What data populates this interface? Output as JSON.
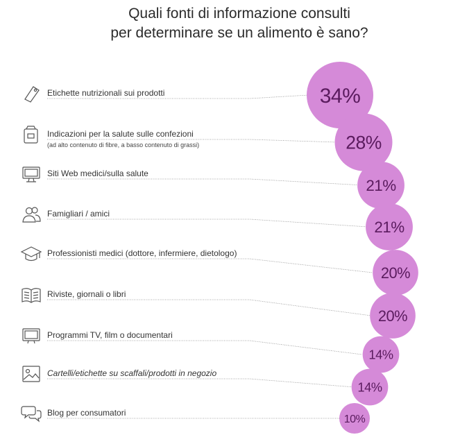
{
  "title_line1": "Quali fonti di informazione consulti",
  "title_line2": "per determinare se un alimento è sano?",
  "colors": {
    "bubble": "#d58ad8",
    "bubble_text": "#5a1b5e",
    "leader": "#8a8a8a"
  },
  "chart_data": {
    "type": "bubble",
    "unit": "%",
    "categories": [
      "Etichette nutrizionali sui prodotti",
      "Indicazioni per la salute sulle confezioni",
      "Siti Web medici/sulla salute",
      "Famigliari / amici",
      "Professionisti medici (dottore, infermiere, dietologo)",
      "Riviste, giornali o libri",
      "Programmi TV, film o documentari",
      "Cartelli/etichette su scaffali/prodotti in negozio",
      "Blog per consumatori"
    ],
    "values": [
      34,
      28,
      21,
      21,
      20,
      20,
      14,
      14,
      10
    ],
    "value_labels": [
      "34%",
      "28%",
      "21%",
      "21%",
      "20%",
      "20%",
      "14%",
      "14%",
      "10%"
    ],
    "sublabels": [
      "",
      "(ad alto contenuto di fibre, a basso contenuto di grassi)",
      "",
      "",
      "",
      "",
      "",
      "",
      ""
    ],
    "icons": [
      "tag-icon",
      "package-icon",
      "monitor-icon",
      "people-icon",
      "graduation-cap-icon",
      "book-icon",
      "tv-icon",
      "image-icon",
      "chat-bubbles-icon"
    ]
  }
}
